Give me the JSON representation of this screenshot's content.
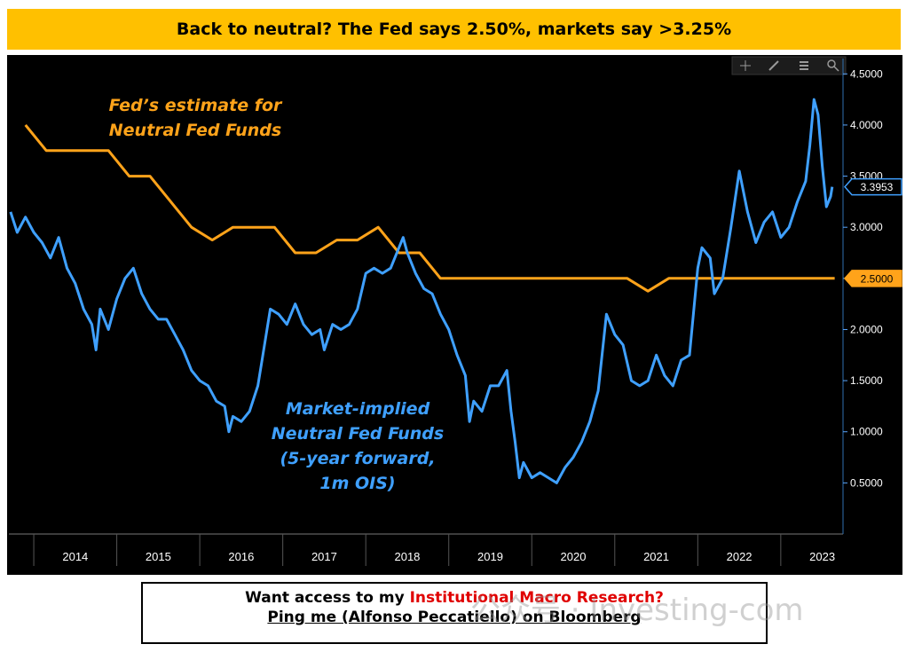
{
  "title": "Back to neutral? The Fed says 2.50%, markets say >3.25%",
  "toolbar": {
    "icons": [
      "crosshair-icon",
      "pen-icon",
      "list-icon",
      "zoom-icon"
    ]
  },
  "footer": {
    "line1_prefix": "Want access to my ",
    "line1_highlight": "Institutional Macro Research?",
    "line2": "Ping me (Alfonso Peccatiello) on Bloomberg"
  },
  "watermark": "公众号 · Investing-com",
  "colors": {
    "fed": "#ffa31a",
    "market": "#3fa0ff",
    "background": "#000000",
    "title_bg": "#ffc000"
  },
  "chart_data": {
    "type": "line",
    "x_labels": [
      "2014",
      "2015",
      "2016",
      "2017",
      "2018",
      "2019",
      "2020",
      "2021",
      "2022",
      "2023"
    ],
    "y_ticks": [
      "0.5000",
      "1.0000",
      "1.5000",
      "2.0000",
      "2.5000",
      "3.0000",
      "3.5000",
      "4.0000",
      "4.5000"
    ],
    "ylim": [
      0.0,
      4.65
    ],
    "xlim": [
      2013.7,
      2023.75
    ],
    "annotations": {
      "fed_label": [
        "Fed’s estimate for",
        "Neutral Fed Funds"
      ],
      "market_label": [
        "Market-implied",
        "Neutral Fed Funds",
        "(5-year forward,",
        "1m OIS)"
      ]
    },
    "series": [
      {
        "name": "Fed’s estimate for Neutral Fed Funds",
        "last_value_label": "2.5000",
        "points": [
          [
            2013.9,
            4.0
          ],
          [
            2014.15,
            3.75
          ],
          [
            2014.9,
            3.75
          ],
          [
            2015.15,
            3.5
          ],
          [
            2015.4,
            3.5
          ],
          [
            2015.9,
            3.0
          ],
          [
            2016.15,
            2.875
          ],
          [
            2016.4,
            3.0
          ],
          [
            2016.9,
            3.0
          ],
          [
            2017.15,
            2.75
          ],
          [
            2017.4,
            2.75
          ],
          [
            2017.65,
            2.875
          ],
          [
            2017.9,
            2.875
          ],
          [
            2018.15,
            3.0
          ],
          [
            2018.4,
            2.75
          ],
          [
            2018.65,
            2.75
          ],
          [
            2018.9,
            2.5
          ],
          [
            2021.15,
            2.5
          ],
          [
            2021.4,
            2.375
          ],
          [
            2021.65,
            2.5
          ],
          [
            2023.65,
            2.5
          ]
        ]
      },
      {
        "name": "Market-implied Neutral Fed Funds (5-year forward, 1m OIS)",
        "last_value_label": "3.3953",
        "points": [
          [
            2013.72,
            3.15
          ],
          [
            2013.8,
            2.95
          ],
          [
            2013.9,
            3.1
          ],
          [
            2014.0,
            2.95
          ],
          [
            2014.1,
            2.85
          ],
          [
            2014.2,
            2.7
          ],
          [
            2014.3,
            2.9
          ],
          [
            2014.4,
            2.6
          ],
          [
            2014.5,
            2.45
          ],
          [
            2014.6,
            2.2
          ],
          [
            2014.7,
            2.05
          ],
          [
            2014.75,
            1.8
          ],
          [
            2014.8,
            2.2
          ],
          [
            2014.9,
            2.0
          ],
          [
            2015.0,
            2.3
          ],
          [
            2015.1,
            2.5
          ],
          [
            2015.2,
            2.6
          ],
          [
            2015.3,
            2.35
          ],
          [
            2015.4,
            2.2
          ],
          [
            2015.5,
            2.1
          ],
          [
            2015.6,
            2.1
          ],
          [
            2015.7,
            1.95
          ],
          [
            2015.8,
            1.8
          ],
          [
            2015.9,
            1.6
          ],
          [
            2016.0,
            1.5
          ],
          [
            2016.1,
            1.45
          ],
          [
            2016.2,
            1.3
          ],
          [
            2016.3,
            1.25
          ],
          [
            2016.35,
            1.0
          ],
          [
            2016.4,
            1.15
          ],
          [
            2016.5,
            1.1
          ],
          [
            2016.6,
            1.2
          ],
          [
            2016.7,
            1.45
          ],
          [
            2016.75,
            1.7
          ],
          [
            2016.85,
            2.2
          ],
          [
            2016.95,
            2.15
          ],
          [
            2017.05,
            2.05
          ],
          [
            2017.15,
            2.25
          ],
          [
            2017.25,
            2.05
          ],
          [
            2017.35,
            1.95
          ],
          [
            2017.45,
            2.0
          ],
          [
            2017.5,
            1.8
          ],
          [
            2017.6,
            2.05
          ],
          [
            2017.7,
            2.0
          ],
          [
            2017.8,
            2.05
          ],
          [
            2017.9,
            2.2
          ],
          [
            2018.0,
            2.55
          ],
          [
            2018.1,
            2.6
          ],
          [
            2018.2,
            2.55
          ],
          [
            2018.3,
            2.6
          ],
          [
            2018.4,
            2.8
          ],
          [
            2018.45,
            2.9
          ],
          [
            2018.5,
            2.75
          ],
          [
            2018.6,
            2.55
          ],
          [
            2018.7,
            2.4
          ],
          [
            2018.8,
            2.35
          ],
          [
            2018.9,
            2.15
          ],
          [
            2019.0,
            2.0
          ],
          [
            2019.1,
            1.75
          ],
          [
            2019.2,
            1.55
          ],
          [
            2019.25,
            1.1
          ],
          [
            2019.3,
            1.3
          ],
          [
            2019.4,
            1.2
          ],
          [
            2019.5,
            1.45
          ],
          [
            2019.6,
            1.45
          ],
          [
            2019.7,
            1.6
          ],
          [
            2019.75,
            1.2
          ],
          [
            2019.8,
            0.9
          ],
          [
            2019.85,
            0.55
          ],
          [
            2019.9,
            0.7
          ],
          [
            2020.0,
            0.55
          ],
          [
            2020.1,
            0.6
          ],
          [
            2020.2,
            0.55
          ],
          [
            2020.3,
            0.5
          ],
          [
            2020.4,
            0.65
          ],
          [
            2020.5,
            0.75
          ],
          [
            2020.6,
            0.9
          ],
          [
            2020.7,
            1.1
          ],
          [
            2020.8,
            1.4
          ],
          [
            2020.9,
            2.15
          ],
          [
            2021.0,
            1.95
          ],
          [
            2021.1,
            1.85
          ],
          [
            2021.2,
            1.5
          ],
          [
            2021.3,
            1.45
          ],
          [
            2021.4,
            1.5
          ],
          [
            2021.5,
            1.75
          ],
          [
            2021.6,
            1.55
          ],
          [
            2021.7,
            1.45
          ],
          [
            2021.8,
            1.7
          ],
          [
            2021.9,
            1.75
          ],
          [
            2022.0,
            2.6
          ],
          [
            2022.05,
            2.8
          ],
          [
            2022.15,
            2.7
          ],
          [
            2022.2,
            2.35
          ],
          [
            2022.3,
            2.5
          ],
          [
            2022.4,
            3.0
          ],
          [
            2022.5,
            3.55
          ],
          [
            2022.6,
            3.15
          ],
          [
            2022.7,
            2.85
          ],
          [
            2022.8,
            3.05
          ],
          [
            2022.9,
            3.15
          ],
          [
            2023.0,
            2.9
          ],
          [
            2023.1,
            3.0
          ],
          [
            2023.2,
            3.25
          ],
          [
            2023.3,
            3.45
          ],
          [
            2023.35,
            3.8
          ],
          [
            2023.4,
            4.25
          ],
          [
            2023.45,
            4.1
          ],
          [
            2023.5,
            3.6
          ],
          [
            2023.55,
            3.2
          ],
          [
            2023.6,
            3.3
          ],
          [
            2023.62,
            3.3953
          ]
        ]
      }
    ]
  }
}
